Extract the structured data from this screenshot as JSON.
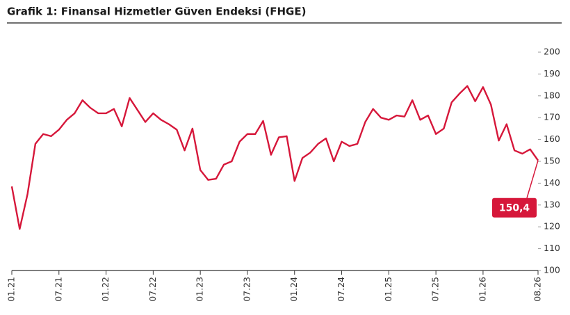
{
  "chart_data": {
    "type": "line",
    "title": "Grafik 1: Finansal Hizmetler Güven Endeksi (FHGE)",
    "categories": [
      "01.21",
      null,
      null,
      null,
      null,
      null,
      "07.21",
      null,
      null,
      null,
      null,
      null,
      "01.22",
      null,
      null,
      null,
      null,
      null,
      "07.22",
      null,
      null,
      null,
      null,
      null,
      "01.23",
      null,
      null,
      null,
      null,
      null,
      "07.23",
      null,
      null,
      null,
      null,
      null,
      "01.24",
      null,
      null,
      null,
      null,
      null,
      "07.24",
      null,
      null,
      null,
      null,
      null,
      "01.25",
      null,
      null,
      null,
      null,
      null,
      "07.25",
      null,
      null,
      null,
      null,
      null,
      "01.26",
      null,
      null,
      null,
      null,
      null,
      null,
      "08.26"
    ],
    "series": [
      {
        "name": "FHGE",
        "color": "#d6173a",
        "values": [
          138.5,
          119,
          135,
          158,
          162.5,
          161.5,
          164.5,
          169,
          172,
          178,
          174.5,
          172,
          172,
          174,
          166,
          179,
          173.5,
          168,
          172,
          169,
          167,
          164.5,
          155,
          165,
          146,
          141.5,
          142,
          148.5,
          150,
          159,
          162.5,
          162.5,
          168.5,
          153,
          161,
          161.5,
          141,
          151.5,
          154,
          158,
          160.5,
          150,
          159,
          157,
          158,
          168,
          174,
          170,
          169,
          171,
          170.5,
          178,
          169,
          171,
          162.5,
          165,
          177,
          181,
          184.5,
          177.5,
          184,
          176,
          159.5,
          167,
          155,
          153.5,
          155.5,
          150.4
        ],
        "value_labels": [
          null,
          null,
          null,
          null,
          null,
          null,
          null,
          null,
          null,
          null,
          null,
          null,
          null,
          null,
          null,
          null,
          null,
          null,
          null,
          null,
          null,
          null,
          null,
          null,
          null,
          null,
          null,
          null,
          null,
          null,
          null,
          null,
          null,
          null,
          null,
          null,
          null,
          null,
          null,
          null,
          null,
          null,
          null,
          null,
          null,
          null,
          null,
          null,
          null,
          null,
          null,
          null,
          null,
          null,
          null,
          null,
          null,
          null,
          null,
          null,
          null,
          null,
          null,
          null,
          null,
          null,
          null,
          "150,4"
        ]
      }
    ],
    "ylim": [
      100,
      200
    ],
    "yticks": [
      100,
      110,
      120,
      130,
      140,
      150,
      160,
      170,
      180,
      190,
      200
    ],
    "grid": false
  }
}
